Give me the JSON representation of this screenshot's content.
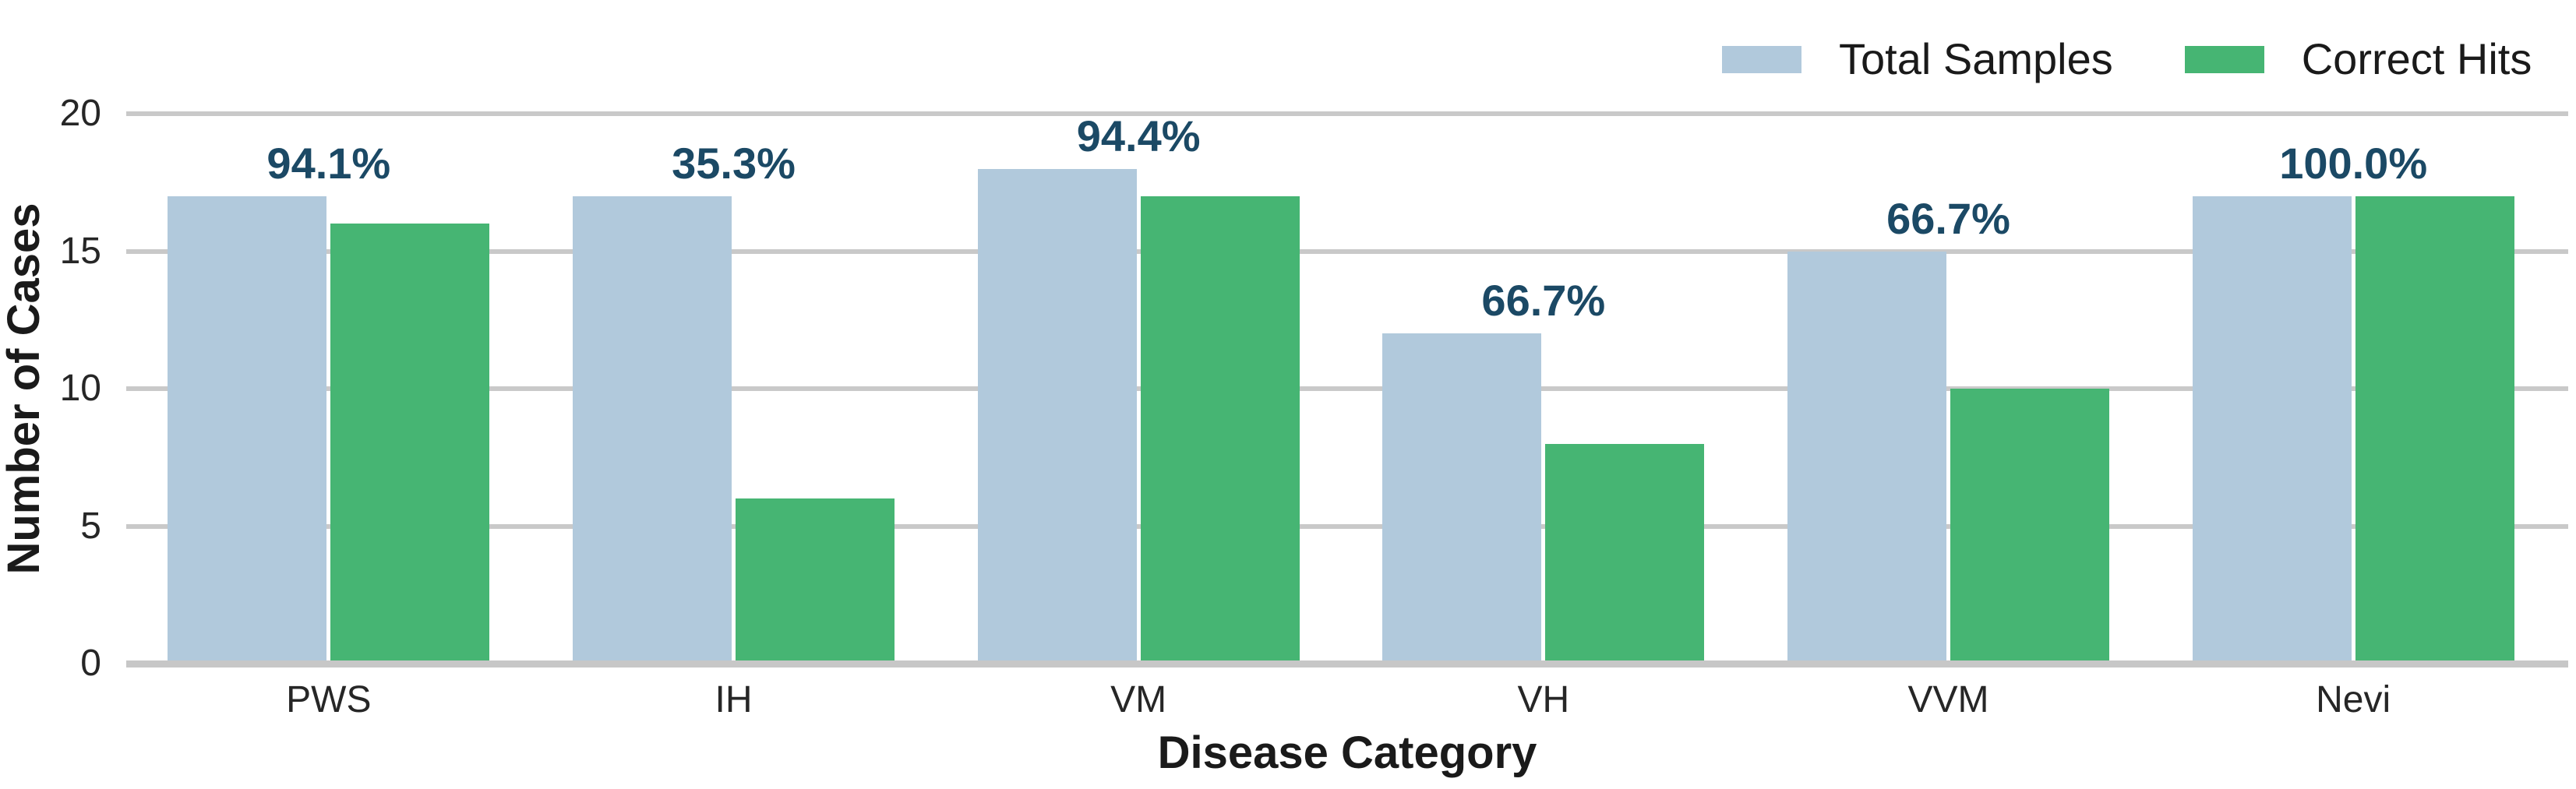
{
  "chart_data": {
    "type": "bar",
    "categories": [
      "PWS",
      "IH",
      "VM",
      "VH",
      "VVM",
      "Nevi"
    ],
    "series": [
      {
        "name": "Total Samples",
        "color": "#b1c9dc",
        "values": [
          17,
          17,
          18,
          12,
          15,
          17
        ]
      },
      {
        "name": "Correct Hits",
        "color": "#46b573",
        "values": [
          16,
          6,
          17,
          8,
          10,
          17
        ]
      }
    ],
    "percent_labels": [
      "94.1%",
      "35.3%",
      "94.4%",
      "66.7%",
      "66.7%",
      "100.0%"
    ],
    "xlabel": "Disease Category",
    "ylabel": "Number of Cases",
    "yticks": [
      0,
      5,
      10,
      15,
      20
    ],
    "ylim": [
      0,
      20
    ],
    "grid": "horizontal",
    "legend_position": "top-right",
    "colors": {
      "percent_label": "#1b4965",
      "gridline": "#c9c9c9",
      "axis_line": "#c7c7c7",
      "tick_label": "#262626",
      "title_text": "#1a1a1a"
    }
  }
}
